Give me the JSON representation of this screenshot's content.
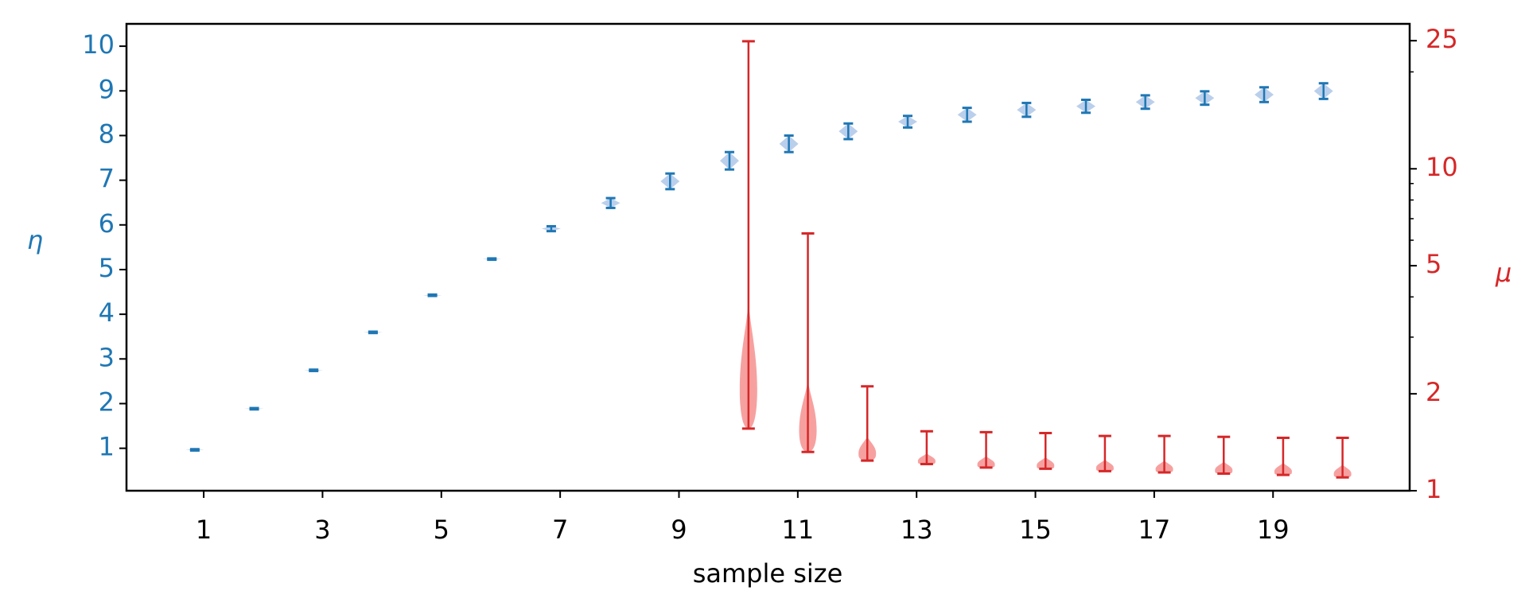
{
  "chart_data": {
    "type": "violin",
    "xlabel": "sample size",
    "ylabel": "η",
    "y2label": "μ",
    "xlim": [
      -0.3,
      21.3
    ],
    "xticks": [
      1,
      3,
      5,
      7,
      9,
      11,
      13,
      15,
      17,
      19
    ],
    "ylim": [
      0.05,
      10.5
    ],
    "yticks": [
      1,
      2,
      3,
      4,
      5,
      6,
      7,
      8,
      9,
      10
    ],
    "y2lim": [
      1,
      28.2
    ],
    "y2scale": "log",
    "y2ticks": [
      1,
      2,
      5,
      10,
      25
    ],
    "y2minorticks": [
      3,
      4,
      6,
      7,
      8,
      9,
      20
    ],
    "series": [
      {
        "color": "#1f77b4",
        "body_color": "#aec7e8",
        "axis": "y",
        "x": [
          0.85,
          1.85,
          2.85,
          3.85,
          4.85,
          5.85,
          6.85,
          7.85,
          8.85,
          9.85,
          10.85,
          11.85,
          12.85,
          13.85,
          14.85,
          15.85,
          16.85,
          17.85,
          18.85,
          19.85
        ],
        "min": [
          0.95,
          1.87,
          2.73,
          3.58,
          4.41,
          5.22,
          5.86,
          6.38,
          6.8,
          7.24,
          7.63,
          7.92,
          8.18,
          8.31,
          8.42,
          8.51,
          8.6,
          8.69,
          8.75,
          8.82
        ],
        "max": [
          0.98,
          1.9,
          2.76,
          3.61,
          4.44,
          5.25,
          5.97,
          6.6,
          7.15,
          7.63,
          8.0,
          8.27,
          8.44,
          8.62,
          8.73,
          8.8,
          8.9,
          8.99,
          9.08,
          9.17
        ]
      },
      {
        "color": "#d62728",
        "body_color": "#f4908f",
        "axis": "y2",
        "x": [
          10.17,
          11.17,
          12.17,
          13.17,
          14.17,
          15.17,
          16.17,
          17.17,
          18.17,
          19.17,
          20.17
        ],
        "min": [
          1.56,
          1.32,
          1.24,
          1.21,
          1.18,
          1.17,
          1.15,
          1.14,
          1.13,
          1.12,
          1.1
        ],
        "max": [
          24.9,
          6.3,
          2.11,
          1.53,
          1.52,
          1.51,
          1.48,
          1.48,
          1.47,
          1.46,
          1.46
        ]
      }
    ]
  }
}
